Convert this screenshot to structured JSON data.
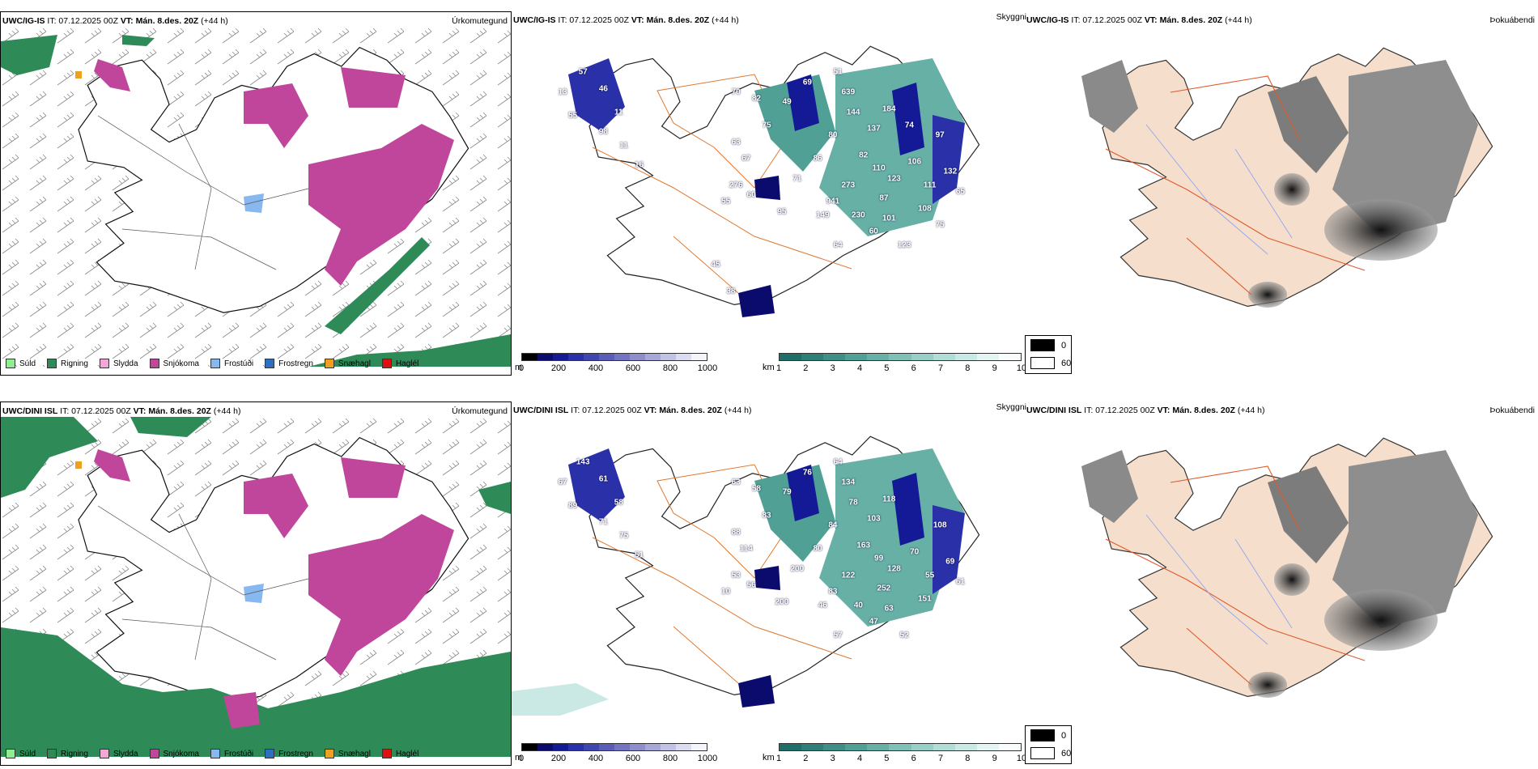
{
  "rows": [
    {
      "model": "UWC/IG-IS",
      "it_label": "IT: 07.12.2025 00Z",
      "vt_label": "VT: Mán. 8.des. 20Z",
      "lead": "(+44 h)",
      "precip_title": "Úrkomutegund",
      "vis_title": "Skyggni",
      "fog_title": "Þokuábendi",
      "numbers": [
        "57",
        "46",
        "13",
        "11",
        "55",
        "98",
        "11",
        "16",
        "70",
        "82",
        "49",
        "69",
        "51",
        "639",
        "144",
        "184",
        "75",
        "80",
        "137",
        "97",
        "63",
        "67",
        "86",
        "82",
        "110",
        "106",
        "71",
        "273",
        "123",
        "941",
        "87",
        "95",
        "149",
        "230",
        "101",
        "108",
        "55",
        "60",
        "276",
        "60",
        "64",
        "123",
        "111",
        "132",
        "65",
        "38",
        "75",
        "45",
        "74"
      ]
    },
    {
      "model": "UWC/DINI ISL",
      "it_label": "IT: 07.12.2025 00Z",
      "vt_label": "VT: Mán. 8.des. 20Z",
      "lead": "(+44 h)",
      "precip_title": "Úrkomutegund",
      "vis_title": "Skyggni",
      "fog_title": "Þokuábendi",
      "numbers": [
        "143",
        "61",
        "67",
        "58",
        "89",
        "71",
        "75",
        "51",
        "63",
        "58",
        "79",
        "76",
        "64",
        "134",
        "78",
        "118",
        "83",
        "84",
        "103",
        "108",
        "88",
        "114",
        "80",
        "163",
        "99",
        "70",
        "200",
        "122",
        "128",
        "83",
        "252",
        "200",
        "46",
        "40",
        "63",
        "151",
        "10",
        "56",
        "53",
        "47",
        "57",
        "52",
        "55",
        "69",
        "61"
      ]
    }
  ],
  "precip_legend": [
    {
      "label": "Súld",
      "color": "#90ee90"
    },
    {
      "label": "Rigning",
      "color": "#2e8b57"
    },
    {
      "label": "Slydda",
      "color": "#f4a6d7"
    },
    {
      "label": "Snjókoma",
      "color": "#c0469c"
    },
    {
      "label": "Frostúði",
      "color": "#87b8f0"
    },
    {
      "label": "Frostregn",
      "color": "#2f6fc2"
    },
    {
      "label": "Snæhagl",
      "color": "#f0a020"
    },
    {
      "label": "Haglél",
      "color": "#e01010"
    }
  ],
  "height_bar": {
    "unit": "m",
    "ticks": [
      "0",
      "200",
      "400",
      "600",
      "800",
      "1000"
    ],
    "colors": [
      "#000000",
      "#0b0b6e",
      "#141a96",
      "#2a31a8",
      "#4046b0",
      "#5a5cb8",
      "#7475c2",
      "#8e8ecc",
      "#a8a8d8",
      "#c2c2e4",
      "#dcdcf0",
      "#f4f4fb"
    ]
  },
  "vis_bar": {
    "unit": "km",
    "ticks": [
      "1",
      "2",
      "3",
      "4",
      "5",
      "6",
      "7",
      "8",
      "9",
      "10"
    ],
    "colors": [
      "#1f6f68",
      "#2e7f77",
      "#3f8f86",
      "#50a096",
      "#66b0a6",
      "#7fc0b7",
      "#98cfc7",
      "#b1ddd7",
      "#cae9e5",
      "#e3f4f2",
      "#f8fcfc"
    ]
  },
  "fog_key": {
    "dark_value": "0",
    "light_value": "60"
  },
  "colors": {
    "snow": "#c0469c",
    "rain": "#2e8b57",
    "land_fog": "#f5dfcc",
    "roads": "#e0782f"
  }
}
